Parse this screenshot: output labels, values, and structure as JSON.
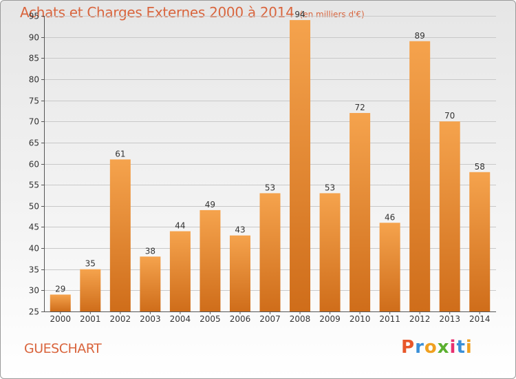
{
  "header": {
    "title": "Achats et Charges Externes 2000 à 2014",
    "subtitle": "(en milliers d'€)"
  },
  "footer": {
    "commune": "GUESCHART",
    "brand": [
      "P",
      "r",
      "o",
      "x",
      "i",
      "t",
      "i"
    ],
    "brand_colors": [
      "#e8572a",
      "#3a8fd8",
      "#f0a020",
      "#5bb030",
      "#e83070",
      "#3a8fd8",
      "#f0a020"
    ]
  },
  "colors": {
    "title": "#d9643c",
    "bar_top": "#f5a34d",
    "bar_bottom": "#cf6d1a",
    "grid": "#c8c8c8"
  },
  "chart_data": {
    "type": "bar",
    "categories": [
      "2000",
      "2001",
      "2002",
      "2003",
      "2004",
      "2005",
      "2006",
      "2007",
      "2008",
      "2009",
      "2010",
      "2011",
      "2012",
      "2013",
      "2014"
    ],
    "values": [
      29,
      35,
      61,
      38,
      44,
      49,
      43,
      53,
      94,
      53,
      72,
      46,
      89,
      70,
      58
    ],
    "ylim": [
      25,
      95
    ],
    "yticks": [
      25,
      30,
      35,
      40,
      45,
      50,
      55,
      60,
      65,
      70,
      75,
      80,
      85,
      90,
      95
    ],
    "grid": true
  }
}
